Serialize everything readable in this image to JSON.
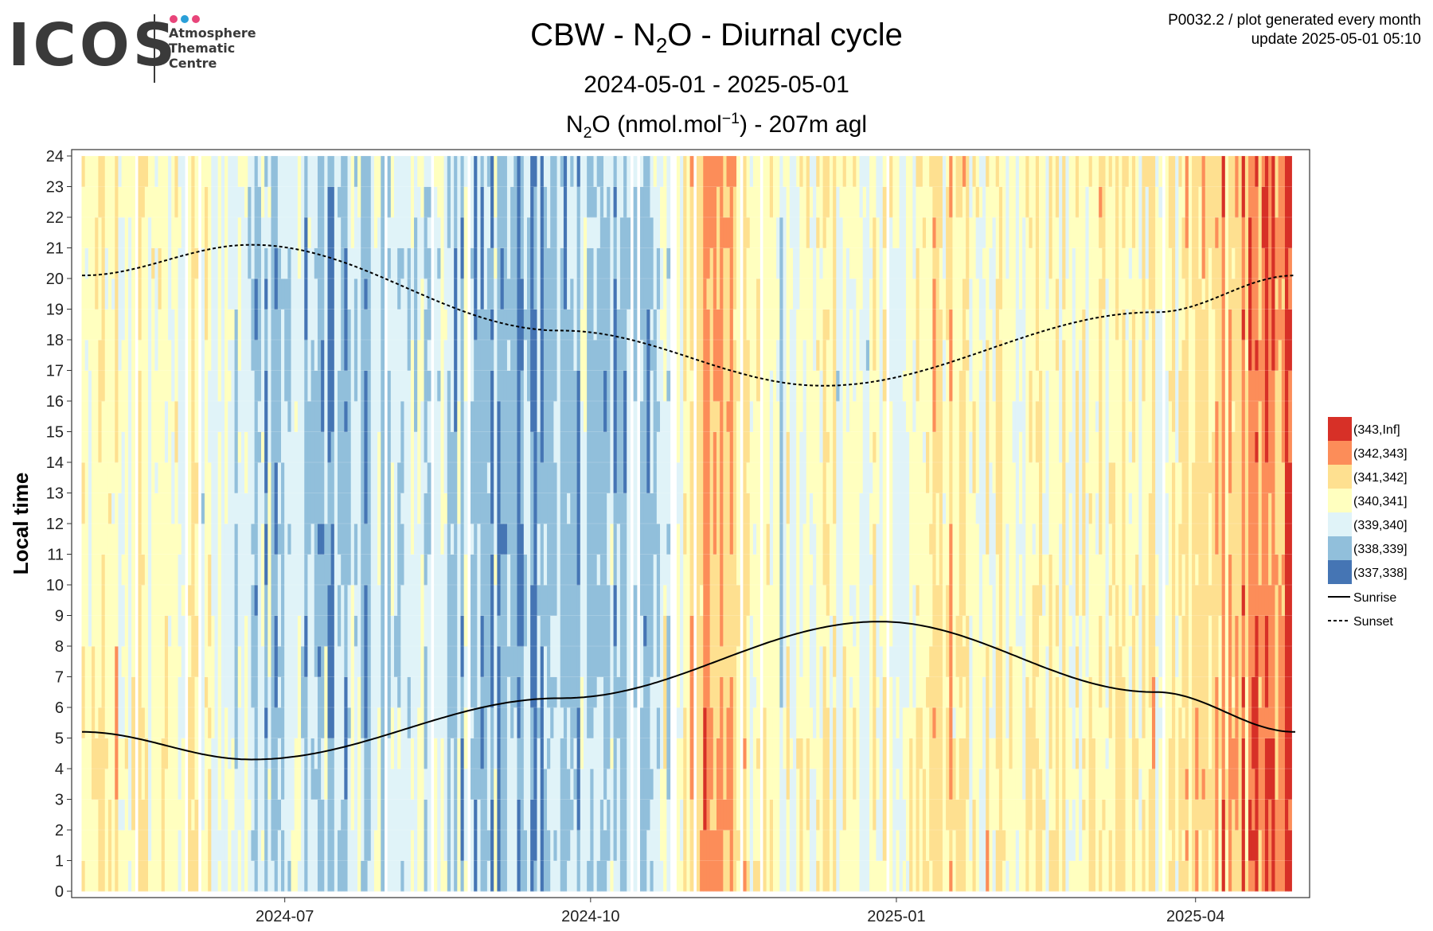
{
  "logo": {
    "word": "ICOS",
    "line1": "Atmosphere",
    "line2": "Thematic",
    "line3": "Centre",
    "dot_colors": [
      "#e8457a",
      "#2a9fd8",
      "#e8457a"
    ]
  },
  "meta": {
    "line1": "P0032.2 / plot generated every month",
    "line2": "update  2025-05-01 05:10"
  },
  "title": {
    "prefix": "CBW - N",
    "sub": "2",
    "suffix": "O - Diurnal cycle"
  },
  "subtitle": "2024-05-01 - 2025-05-01",
  "unit": {
    "a": "N",
    "a_sub": "2",
    "b": "O (nmol.mol",
    "b_sup": "−1",
    "c": ") - 207m agl"
  },
  "chart_data": {
    "type": "heatmap",
    "x_start": "2024-05-01",
    "x_end": "2025-05-01",
    "x_ticks": [
      "2024-07",
      "2024-10",
      "2025-01",
      "2025-04"
    ],
    "ylabel": "Local time",
    "ylim": [
      0,
      24
    ],
    "y_ticks": [
      0,
      1,
      2,
      3,
      4,
      5,
      6,
      7,
      8,
      9,
      10,
      11,
      12,
      13,
      14,
      15,
      16,
      17,
      18,
      19,
      20,
      21,
      22,
      23,
      24
    ],
    "grid": true,
    "legend_placement": "right",
    "bins": [
      {
        "label": "(343,Inf]",
        "color": "#d73027"
      },
      {
        "label": "(342,343]",
        "color": "#fc8d59"
      },
      {
        "label": "(341,342]",
        "color": "#fee090"
      },
      {
        "label": "(340,341]",
        "color": "#ffffbf"
      },
      {
        "label": "(339,340]",
        "color": "#e0f3f8"
      },
      {
        "label": "(338,339]",
        "color": "#91bfdb"
      },
      {
        "label": "(337,338]",
        "color": "#4575b4"
      }
    ],
    "lines": [
      {
        "name": "Sunrise",
        "style": "solid",
        "points": [
          [
            "2024-05-01",
            5.2
          ],
          [
            "2024-06-21",
            4.3
          ],
          [
            "2024-09-22",
            6.3
          ],
          [
            "2024-12-27",
            8.8
          ],
          [
            "2025-03-20",
            6.5
          ],
          [
            "2025-05-01",
            5.2
          ]
        ]
      },
      {
        "name": "Sunset",
        "style": "dashed",
        "points": [
          [
            "2024-05-01",
            20.1
          ],
          [
            "2024-06-21",
            21.1
          ],
          [
            "2024-09-22",
            18.3
          ],
          [
            "2024-12-10",
            16.5
          ],
          [
            "2025-03-20",
            18.9
          ],
          [
            "2025-05-01",
            20.1
          ]
        ]
      }
    ]
  }
}
